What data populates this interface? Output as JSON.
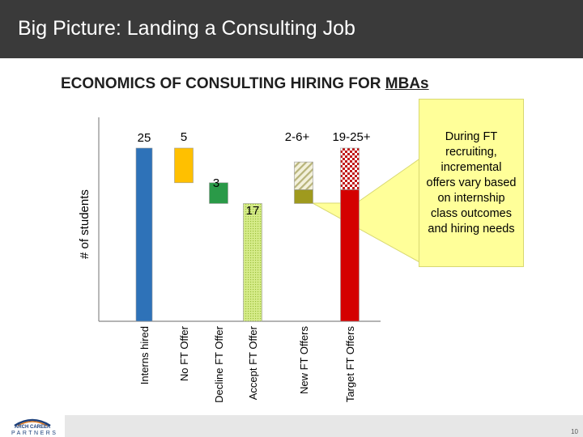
{
  "slide": {
    "title": "Big Picture: Landing a Consulting Job",
    "subtitle_prefix": "ECONOMICS OF CONSULTING HIRING FOR ",
    "subtitle_emphasis": "MBAs",
    "page_number": "10"
  },
  "callout": {
    "text": "During FT recruiting, incremental offers vary based on internship class outcomes and hiring needs"
  },
  "logo": {
    "line1": "ARCH CAREER",
    "line2": "PARTNERS"
  },
  "chart_data": {
    "type": "bar",
    "subtype": "waterfall",
    "ylabel": "# of students",
    "xlabel": "",
    "categories": [
      "Interns hired",
      "No FT Offer",
      "Decline FT Offer",
      "Accept FT Offer",
      "New FT Offers",
      "Target FT Offers"
    ],
    "value_labels": [
      "25",
      "5",
      "3",
      "17",
      "2-6+",
      "19-25+"
    ],
    "bars": [
      {
        "category": "Interns hired",
        "base": 0,
        "value": 25,
        "color": "#2e72b8",
        "pattern": "solid"
      },
      {
        "category": "No FT Offer",
        "base": 20,
        "value": 5,
        "color": "#ffc000",
        "pattern": "solid"
      },
      {
        "category": "Decline FT Offer",
        "base": 17,
        "value": 3,
        "color": "#2a9a48",
        "pattern": "solid"
      },
      {
        "category": "Accept FT Offer",
        "base": 0,
        "value": 17,
        "color": "#d6ec8a",
        "pattern": "dotted"
      },
      {
        "category": "New FT Offers",
        "base": 17,
        "value": 2,
        "color": "#9f9a1e",
        "pattern": "solid"
      },
      {
        "category": "New FT Offers",
        "base": 19,
        "value": 4,
        "color": "#e4e2c4",
        "pattern": "hatched"
      },
      {
        "category": "Target FT Offers",
        "base": 0,
        "value": 19,
        "color": "#d40000",
        "pattern": "solid"
      },
      {
        "category": "Target FT Offers",
        "base": 19,
        "value": 6,
        "color": "#c01818",
        "pattern": "checkered"
      }
    ],
    "ylim": [
      0,
      25
    ],
    "grid": false,
    "legend": "none"
  }
}
